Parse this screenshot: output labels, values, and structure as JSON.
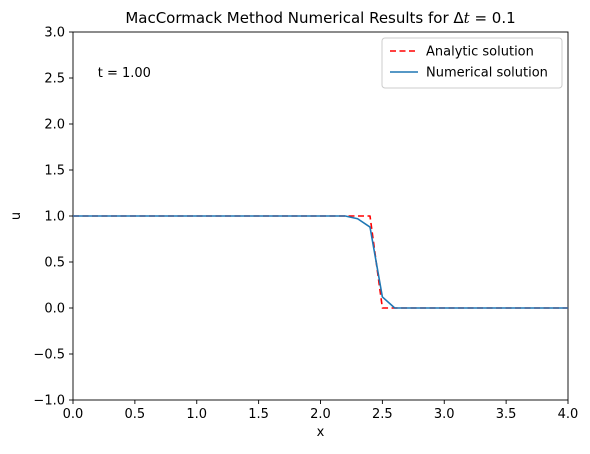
{
  "chart_data": {
    "type": "line",
    "title": "MacCormack Method Numerical Results for Δt = 0.1",
    "title_parts": {
      "prefix": "MacCormack Method Numerical Results for Δ",
      "italic": "t",
      "suffix": " = 0.1"
    },
    "xlabel": "x",
    "ylabel": "u",
    "xlim": [
      0,
      4
    ],
    "ylim": [
      -1,
      3
    ],
    "xticks": [
      0,
      0.5,
      1,
      1.5,
      2,
      2.5,
      3,
      3.5,
      4
    ],
    "xtick_labels": [
      "0.0",
      "0.5",
      "1.0",
      "1.5",
      "2.0",
      "2.5",
      "3.0",
      "3.5",
      "4.0"
    ],
    "yticks": [
      -1,
      -0.5,
      0,
      0.5,
      1,
      1.5,
      2,
      2.5,
      3
    ],
    "ytick_labels": [
      "−1.0",
      "−0.5",
      "0.0",
      "0.5",
      "1.0",
      "1.5",
      "2.0",
      "2.5",
      "3.0"
    ],
    "grid": false,
    "legend": "top-right",
    "annotation": {
      "text": "t = 1.00",
      "x": 0.2,
      "y": 2.5
    },
    "series": [
      {
        "name": "Analytic solution",
        "style": "dashed",
        "color": "#ff0000",
        "x": [
          0,
          2.4,
          2.4,
          2.5,
          2.5,
          4
        ],
        "y": [
          1,
          1,
          1,
          0,
          0,
          0
        ]
      },
      {
        "name": "Numerical solution",
        "style": "solid",
        "color": "#1f77b4",
        "x": [
          0,
          0.5,
          1.0,
          1.5,
          2.0,
          2.2,
          2.3,
          2.4,
          2.5,
          2.6,
          3.0,
          3.5,
          4.0
        ],
        "y": [
          1,
          1,
          1,
          1,
          1,
          1,
          0.97,
          0.88,
          0.12,
          0,
          0,
          0,
          0
        ]
      }
    ]
  }
}
